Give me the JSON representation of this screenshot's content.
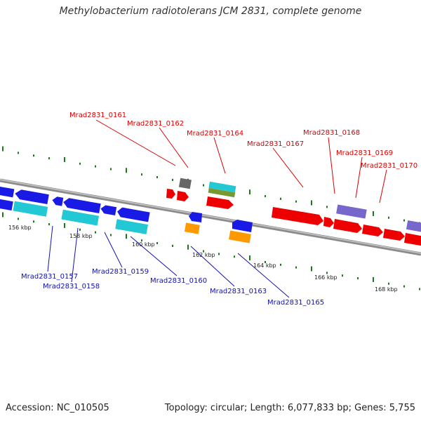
{
  "title": "Methylobacterium radiotolerans JCM 2831, complete genome",
  "footer": {
    "accession": "Accession: NC_010505",
    "summary": "Topology: circular; Length: 6,077,833 bp; Genes: 5,755"
  },
  "colors": {
    "backbone": "#8c8c8c",
    "ticks": "#1a7a1a",
    "label_top": "#d90000",
    "label_bottom": "#1010b0",
    "blue": "#1a1ae6",
    "cyan": "#22c8d4",
    "red": "#ee0000",
    "purple": "#7766cc",
    "orange": "#ff9900",
    "grey": "#666666",
    "olive": "#779933"
  },
  "scale_labels": [
    "156 kbp",
    "158 kbp",
    "160 kbp",
    "162 kbp",
    "164 kbp",
    "166 kbp",
    "168 kbp"
  ],
  "top_genes": [
    "Mrad2831_0161",
    "Mrad2831_0162",
    "Mrad2831_0164",
    "Mrad2831_0167",
    "Mrad2831_0168",
    "Mrad2831_0169",
    "Mrad2831_0170"
  ],
  "bottom_genes": [
    "Mrad2831_0157",
    "Mrad2831_0158",
    "Mrad2831_0159",
    "Mrad2831_0160",
    "Mrad2831_0163",
    "Mrad2831_0165"
  ]
}
